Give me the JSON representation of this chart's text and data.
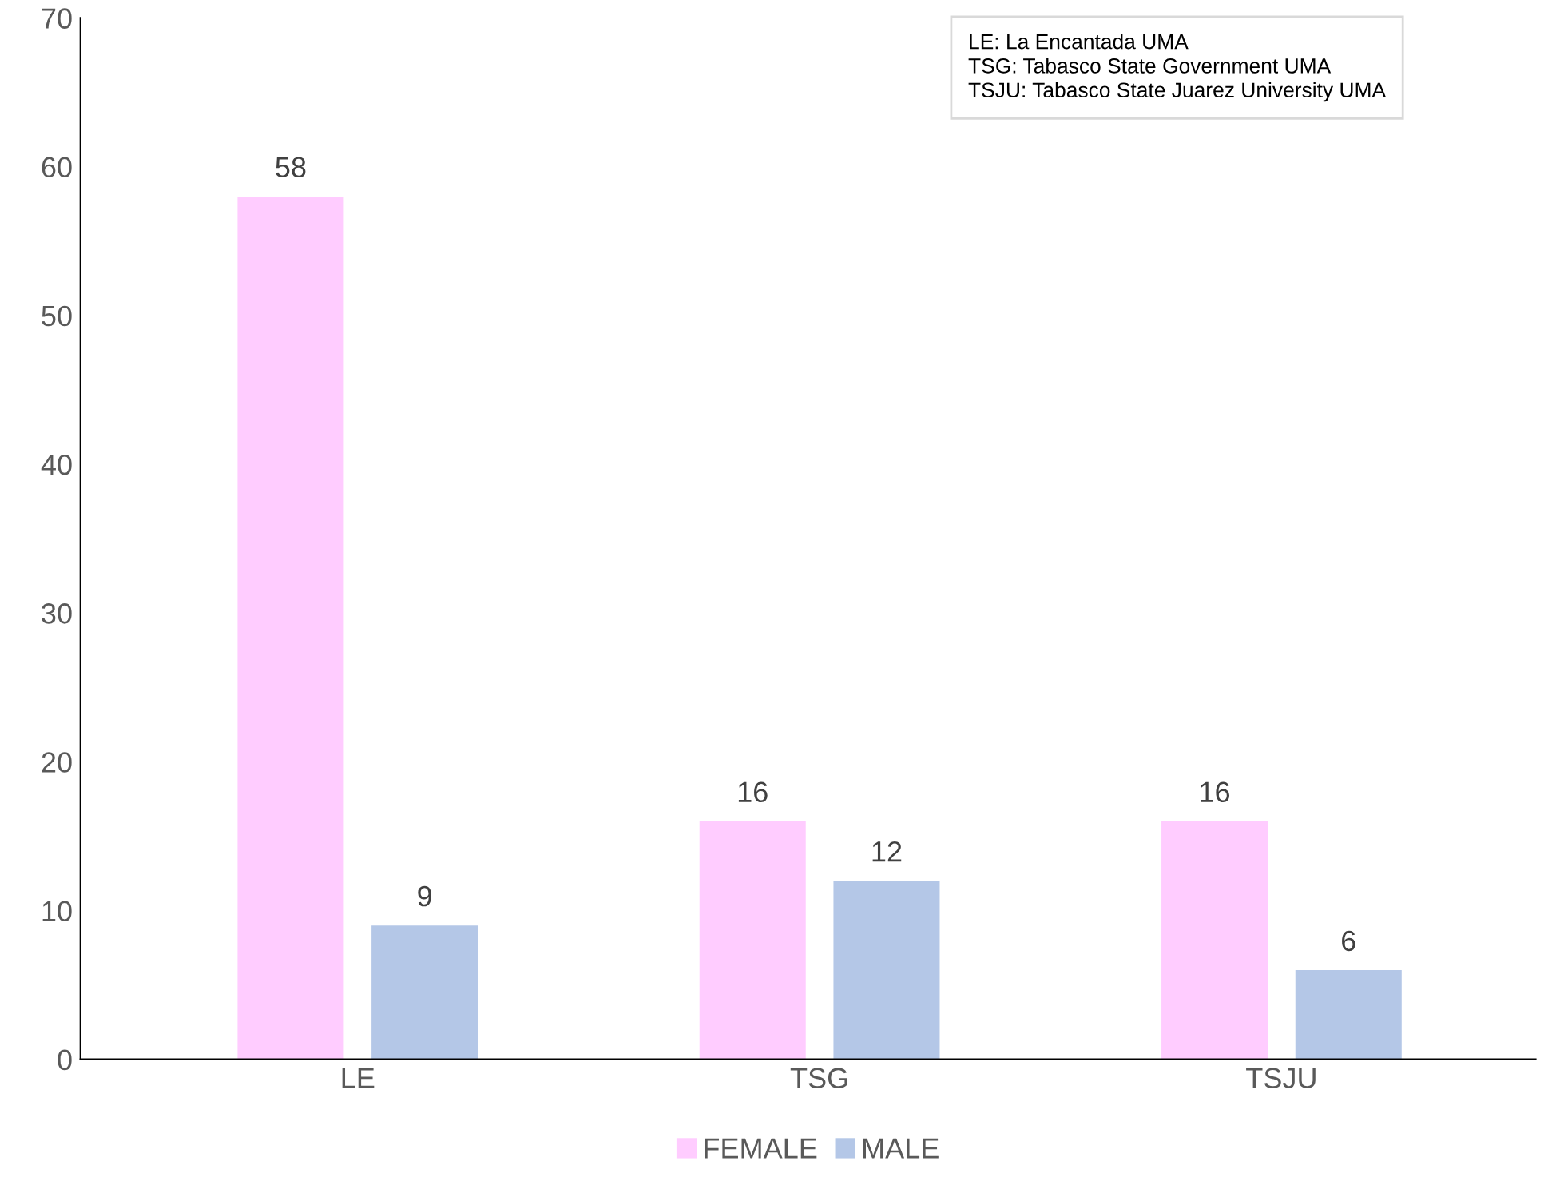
{
  "chart_data": {
    "type": "bar",
    "categories": [
      "LE",
      "TSG",
      "TSJU"
    ],
    "series": [
      {
        "name": "FEMALE",
        "color": "#ffccff",
        "values": [
          58,
          16,
          16
        ]
      },
      {
        "name": "MALE",
        "color": "#b4c7e7",
        "values": [
          9,
          12,
          6
        ]
      }
    ],
    "ylim": [
      0,
      70
    ],
    "yticks": [
      0,
      10,
      20,
      30,
      40,
      50,
      60,
      70
    ],
    "data_labels": true,
    "grid": false,
    "legend": "bottom",
    "annotations": [
      "LE: La Encantada UMA",
      "TSG: Tabasco State Government UMA",
      "TSJU: Tabasco State Juarez University UMA"
    ]
  }
}
